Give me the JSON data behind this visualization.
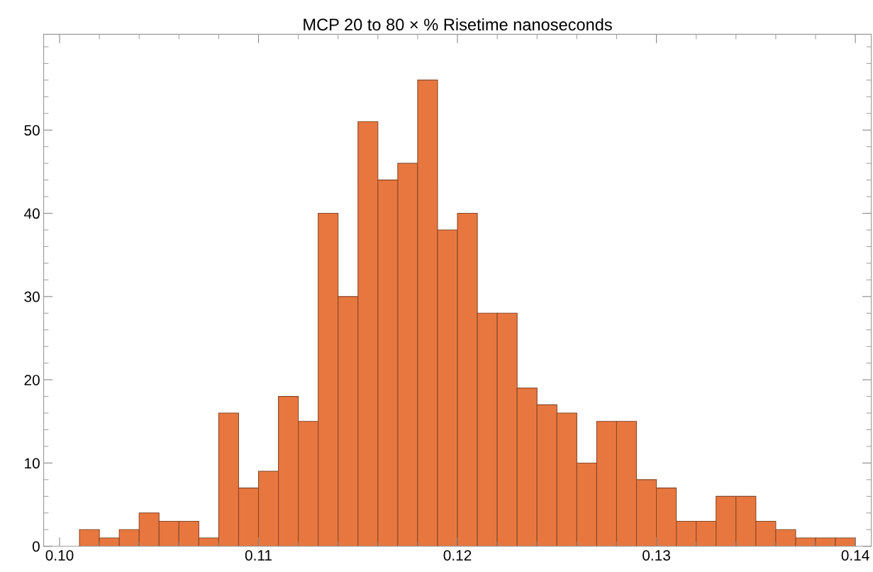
{
  "chart_data": {
    "type": "histogram",
    "title": "MCP 20 to 80 × % Risetime nanoseconds",
    "bins": [
      0.101,
      0.102,
      0.103,
      0.104,
      0.105,
      0.106,
      0.107,
      0.108,
      0.109,
      0.11,
      0.111,
      0.112,
      0.113,
      0.114,
      0.115,
      0.116,
      0.117,
      0.118,
      0.119,
      0.12,
      0.121,
      0.122,
      0.123,
      0.124,
      0.125,
      0.126,
      0.127,
      0.128,
      0.129,
      0.13,
      0.131,
      0.132,
      0.133,
      0.134,
      0.135,
      0.136,
      0.137,
      0.138,
      0.139,
      0.14
    ],
    "values": [
      2,
      1,
      2,
      4,
      3,
      3,
      1,
      16,
      7,
      9,
      18,
      15,
      40,
      30,
      51,
      44,
      46,
      56,
      38,
      40,
      28,
      28,
      19,
      17,
      16,
      10,
      15,
      15,
      8,
      7,
      3,
      3,
      6,
      6,
      3,
      2,
      1,
      1,
      1
    ],
    "color": "#e8773f",
    "xlim": [
      0.0992,
      0.1408
    ],
    "xticks": [
      {
        "value": 0.1,
        "label": "0.10"
      },
      0.11,
      0.12,
      0.13,
      0.14
    ],
    "ylim": [
      0,
      61.5
    ],
    "yticks": [
      0,
      10,
      20,
      30,
      40,
      50
    ],
    "grid": false
  }
}
